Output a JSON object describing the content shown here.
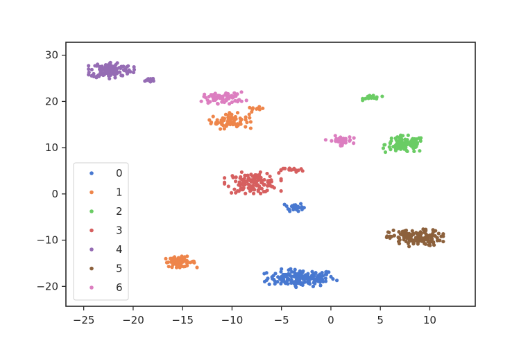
{
  "chart_data": {
    "type": "scatter",
    "title": "",
    "xlabel": "",
    "ylabel": "",
    "xlim": [
      -26.8,
      14.6
    ],
    "ylim": [
      -24.3,
      32.8
    ],
    "xticks": [
      -25,
      -20,
      -15,
      -10,
      -5,
      0,
      5,
      10
    ],
    "yticks": [
      -20,
      -10,
      0,
      10,
      20,
      30
    ],
    "xtick_labels": [
      "−25",
      "−20",
      "−15",
      "−10",
      "−5",
      "0",
      "5",
      "10"
    ],
    "ytick_labels": [
      "−20",
      "−10",
      "0",
      "10",
      "20",
      "30"
    ],
    "grid": false,
    "legend": {
      "placement": "lower-left",
      "entries": [
        "0",
        "1",
        "2",
        "3",
        "4",
        "5",
        "6"
      ]
    },
    "colors": [
      "#4878d0",
      "#ee854a",
      "#6acc64",
      "#d65f5f",
      "#956cb4",
      "#8c613c",
      "#dc7ec0"
    ],
    "series": [
      {
        "name": "0",
        "clusters": [
          {
            "cx": -3.0,
            "cy": -18.2,
            "sx": 3.4,
            "sy": 1.8,
            "n": 160
          },
          {
            "cx": -3.7,
            "cy": -2.8,
            "sx": 0.9,
            "sy": 0.9,
            "n": 28
          }
        ]
      },
      {
        "name": "1",
        "clusters": [
          {
            "cx": -10.2,
            "cy": 15.8,
            "sx": 1.9,
            "sy": 1.6,
            "n": 70
          },
          {
            "cx": -7.6,
            "cy": 18.3,
            "sx": 0.8,
            "sy": 0.5,
            "n": 10
          },
          {
            "cx": -15.3,
            "cy": -14.7,
            "sx": 1.6,
            "sy": 1.1,
            "n": 60
          }
        ]
      },
      {
        "name": "2",
        "clusters": [
          {
            "cx": 7.5,
            "cy": 10.7,
            "sx": 2.0,
            "sy": 1.8,
            "n": 110
          },
          {
            "cx": 4.2,
            "cy": 20.9,
            "sx": 0.9,
            "sy": 0.6,
            "n": 18
          }
        ]
      },
      {
        "name": "3",
        "clusters": [
          {
            "cx": -7.9,
            "cy": 2.4,
            "sx": 2.6,
            "sy": 2.1,
            "n": 135
          },
          {
            "cx": -3.9,
            "cy": 5.2,
            "sx": 1.1,
            "sy": 0.5,
            "n": 16
          }
        ]
      },
      {
        "name": "4",
        "clusters": [
          {
            "cx": -22.2,
            "cy": 26.8,
            "sx": 2.1,
            "sy": 1.7,
            "n": 130
          },
          {
            "cx": -18.4,
            "cy": 24.6,
            "sx": 0.8,
            "sy": 0.6,
            "n": 12
          }
        ]
      },
      {
        "name": "5",
        "clusters": [
          {
            "cx": 8.5,
            "cy": -9.5,
            "sx": 2.6,
            "sy": 1.7,
            "n": 140
          }
        ]
      },
      {
        "name": "6",
        "clusters": [
          {
            "cx": -10.8,
            "cy": 20.8,
            "sx": 2.1,
            "sy": 1.2,
            "n": 70
          },
          {
            "cx": 0.9,
            "cy": 11.5,
            "sx": 1.3,
            "sy": 1.0,
            "n": 40
          }
        ]
      }
    ]
  }
}
